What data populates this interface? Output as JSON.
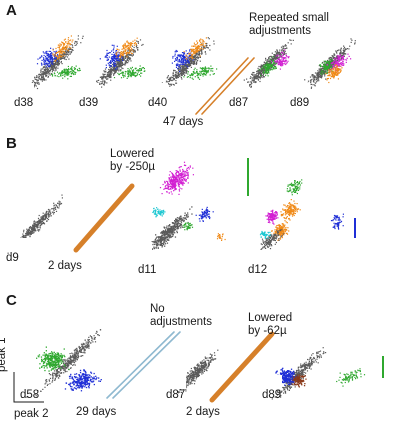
{
  "panels": [
    {
      "letter": "A",
      "days": [
        "d38",
        "d39",
        "d40",
        "d87",
        "d89"
      ],
      "gap": "47 days",
      "note": [
        "Repeated small",
        "adjustments"
      ]
    },
    {
      "letter": "B",
      "days": [
        "d9",
        "d11",
        "d12"
      ],
      "gap": "2 days",
      "note": [
        "Lowered",
        "by -250µ"
      ]
    },
    {
      "letter": "C",
      "days": [
        "d58",
        "d87",
        "d89"
      ],
      "gap": "29 days",
      "gap2": "2 days",
      "note": [
        "No",
        "adjustments"
      ],
      "note2": [
        "Lowered",
        "by -62µ"
      ]
    }
  ],
  "axes": {
    "y": "peak 1",
    "x": "peak 2"
  },
  "colors": {
    "gray": "#5a5a5a",
    "blue": "#1f2fd6",
    "green": "#2fa82f",
    "orange": "#f08a18",
    "magenta": "#d21fd2",
    "cyan": "#1fc8d2",
    "brown": "#8a3a1a",
    "connector": "#d6802a",
    "connector_light": "#8fb9d0"
  }
}
